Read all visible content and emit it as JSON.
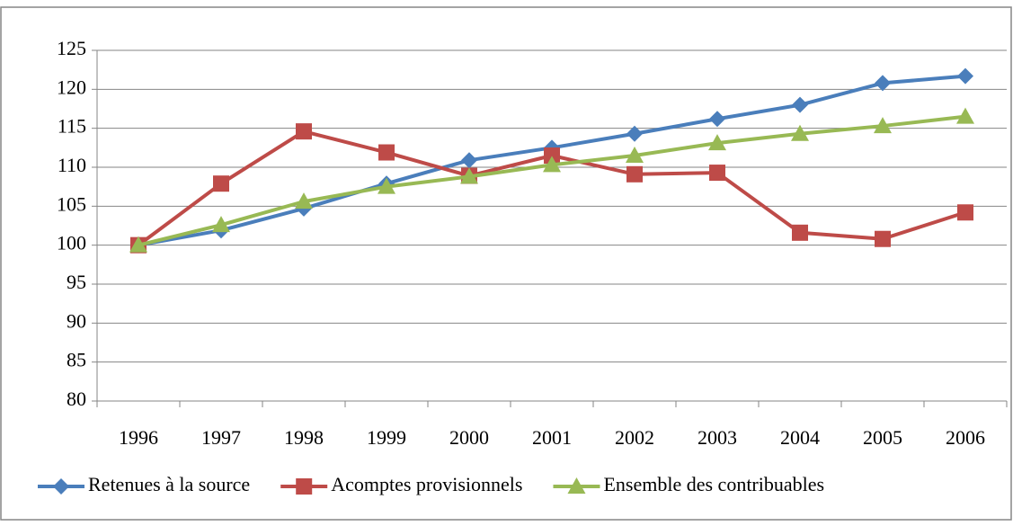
{
  "chart_data": {
    "type": "line",
    "categories": [
      "1996",
      "1997",
      "1998",
      "1999",
      "2000",
      "2001",
      "2002",
      "2003",
      "2004",
      "2005",
      "2006"
    ],
    "series": [
      {
        "name": "Retenues à la source",
        "color": "#4a7ebb",
        "marker": "diamond",
        "values": [
          100,
          101.9,
          104.7,
          107.9,
          110.9,
          112.5,
          114.3,
          116.2,
          118,
          120.8,
          121.7
        ]
      },
      {
        "name": "Acomptes provisionnels",
        "color": "#be4b48",
        "marker": "square",
        "values": [
          100,
          107.9,
          114.6,
          111.9,
          108.9,
          111.5,
          109.1,
          109.3,
          101.6,
          100.8,
          104.2
        ]
      },
      {
        "name": "Ensemble des contribuables",
        "color": "#98b954",
        "marker": "triangle",
        "values": [
          100,
          102.6,
          105.6,
          107.5,
          108.8,
          110.3,
          111.5,
          113.1,
          114.3,
          115.3,
          116.5
        ]
      }
    ],
    "ylim": [
      80,
      125
    ],
    "yticks": [
      80,
      85,
      90,
      95,
      100,
      105,
      110,
      115,
      120,
      125
    ],
    "grid": true,
    "legend": "bottom"
  }
}
